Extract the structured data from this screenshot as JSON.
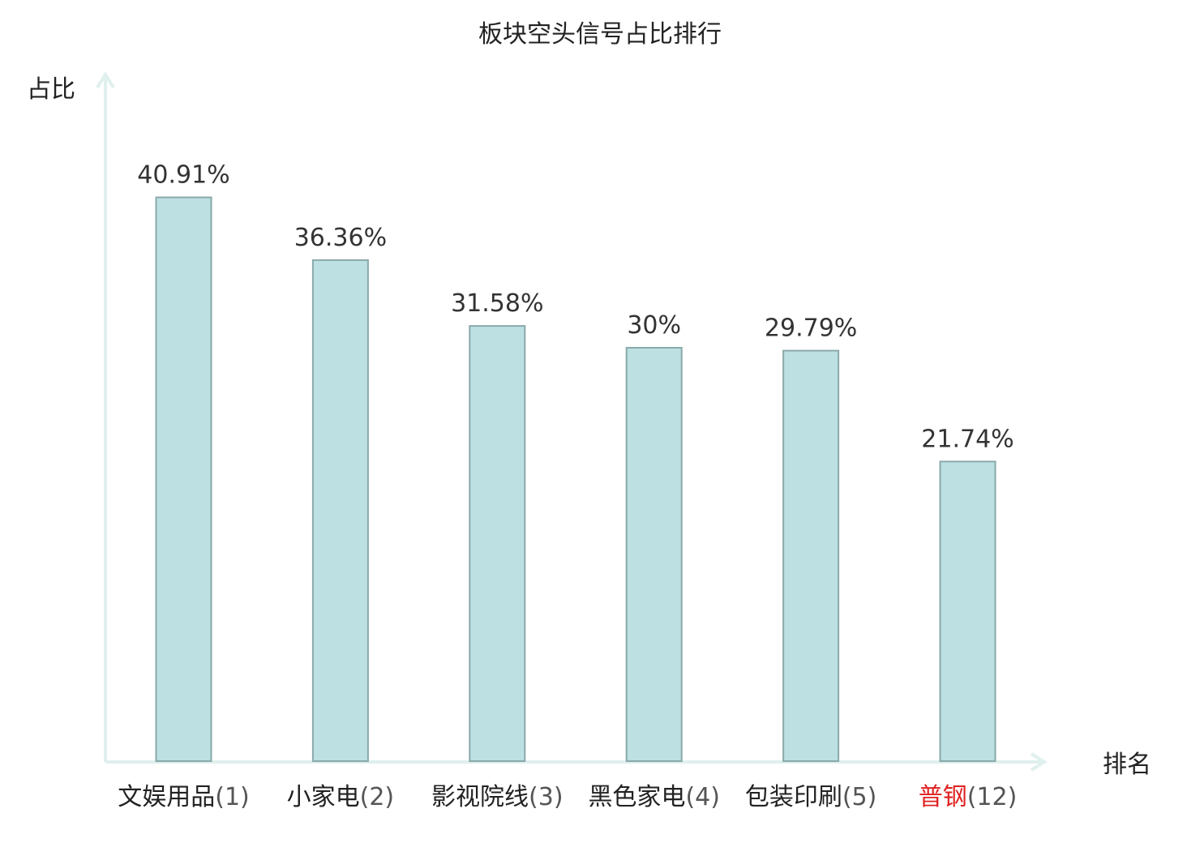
{
  "chart_data": {
    "type": "bar",
    "title": "板块空头信号占比排行",
    "ylabel": "占比",
    "xlabel": "排名",
    "ylim": [
      0,
      45
    ],
    "grid": false,
    "categories": [
      {
        "name": "文娱用品",
        "rank": "(1)",
        "highlight": false
      },
      {
        "name": "小家电",
        "rank": "(2)",
        "highlight": false
      },
      {
        "name": "影视院线",
        "rank": "(3)",
        "highlight": false
      },
      {
        "name": "黑色家电",
        "rank": "(4)",
        "highlight": false
      },
      {
        "name": "包装印刷",
        "rank": "(5)",
        "highlight": false
      },
      {
        "name": "普钢",
        "rank": "(12)",
        "highlight": true
      }
    ],
    "values": [
      40.91,
      36.36,
      31.58,
      30,
      29.79,
      21.74
    ],
    "value_labels": [
      "40.91%",
      "36.36%",
      "31.58%",
      "30%",
      "29.79%",
      "21.74%"
    ],
    "colors": {
      "bar_fill": "#bde0e2",
      "bar_stroke": "#8aa9aa",
      "axis": "#dff0ee",
      "highlight_text": "#e02020"
    }
  }
}
